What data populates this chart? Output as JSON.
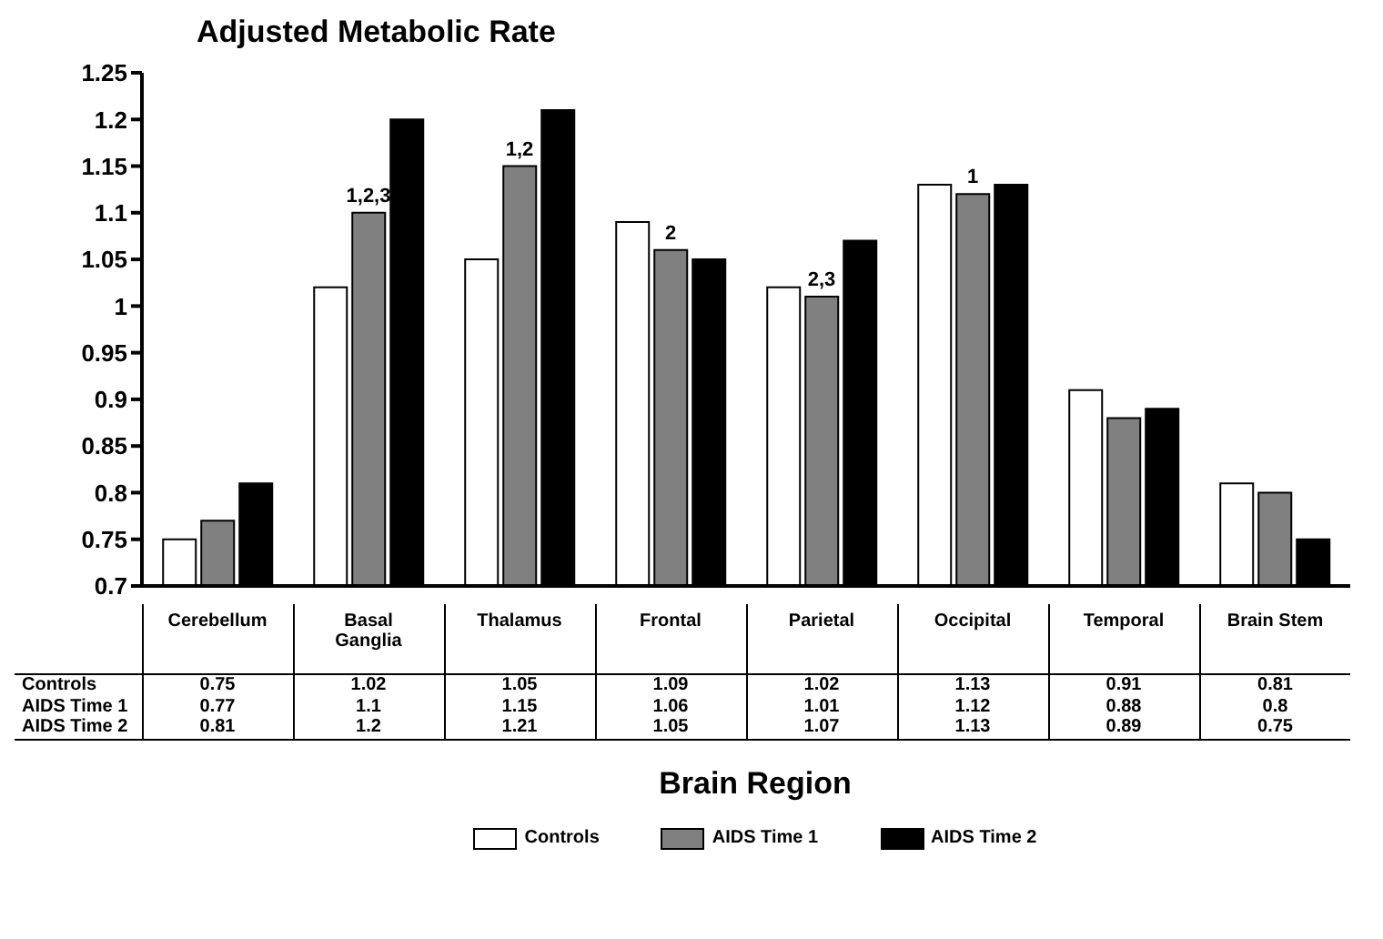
{
  "chart_data": {
    "type": "bar",
    "title": "Adjusted Metabolic Rate",
    "xlabel": "Brain Region",
    "categories": [
      "Cerebellum",
      "Basal Ganglia",
      "Thalamus",
      "Frontal",
      "Parietal",
      "Occipital",
      "Temporal",
      "Brain Stem"
    ],
    "series": [
      {
        "name": "Controls",
        "color": "#ffffff",
        "values": [
          0.75,
          1.02,
          1.05,
          1.09,
          1.02,
          1.13,
          0.91,
          0.81
        ]
      },
      {
        "name": "AIDS Time 1",
        "color": "#808080",
        "values": [
          0.77,
          1.1,
          1.15,
          1.06,
          1.01,
          1.12,
          0.88,
          0.8
        ]
      },
      {
        "name": "AIDS Time 2",
        "color": "#000000",
        "values": [
          0.81,
          1.2,
          1.21,
          1.05,
          1.07,
          1.13,
          0.89,
          0.75
        ]
      }
    ],
    "ylim": [
      0.7,
      1.25
    ],
    "yticks": [
      0.7,
      0.75,
      0.8,
      0.85,
      0.9,
      0.95,
      1,
      1.05,
      1.1,
      1.15,
      1.2,
      1.25
    ],
    "grid": false,
    "legend": "bottom",
    "data_labels": true,
    "annotations": [
      {
        "text": "1,2,3",
        "x": "Basal Ganglia",
        "y": 1.1
      },
      {
        "text": "1,2",
        "x": "Thalamus",
        "y": 1.15
      },
      {
        "text": "2",
        "x": "Frontal",
        "y": 1.06
      },
      {
        "text": "2,3",
        "x": "Parietal",
        "y": 1.01
      },
      {
        "text": "1",
        "x": "Occipital",
        "y": 1.12
      }
    ]
  }
}
